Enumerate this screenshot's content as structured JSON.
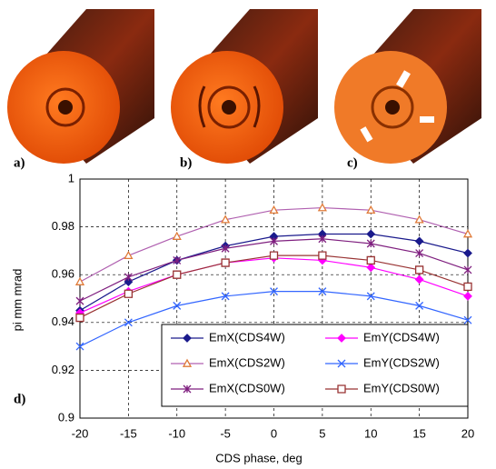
{
  "panel_labels": [
    "a)",
    "b)",
    "c)",
    "d)"
  ],
  "chart_data": {
    "type": "line",
    "x_label": "CDS phase, deg",
    "y_label": "pi mm mrad",
    "x": [
      -20,
      -15,
      -10,
      -5,
      0,
      5,
      10,
      15,
      20
    ],
    "xlim": [
      -20,
      20
    ],
    "xticks": [
      -20,
      -15,
      -10,
      -5,
      0,
      5,
      10,
      15,
      20
    ],
    "ylim": [
      0.9,
      1
    ],
    "yticks": [
      0.9,
      0.92,
      0.94,
      0.96,
      0.98,
      1
    ],
    "grid": true,
    "series": [
      {
        "name": "EmX(CDS4W)",
        "color": "#1a1a8c",
        "marker": "diamond",
        "values": [
          0.945,
          0.957,
          0.966,
          0.972,
          0.976,
          0.977,
          0.977,
          0.974,
          0.969
        ]
      },
      {
        "name": "EmY(CDS4W)",
        "color": "#ff00ff",
        "marker": "diamond",
        "values": [
          0.944,
          0.953,
          0.96,
          0.965,
          0.967,
          0.966,
          0.963,
          0.958,
          0.951
        ]
      },
      {
        "name": "EmX(CDS2W)",
        "color": "#e07b39",
        "line_color": "#b060b0",
        "marker": "triangle",
        "values": [
          0.957,
          0.968,
          0.976,
          0.983,
          0.987,
          0.988,
          0.987,
          0.983,
          0.977
        ]
      },
      {
        "name": "EmY(CDS2W)",
        "color": "#3366ff",
        "marker": "x",
        "values": [
          0.93,
          0.94,
          0.947,
          0.951,
          0.953,
          0.953,
          0.951,
          0.947,
          0.941
        ]
      },
      {
        "name": "EmX(CDS0W)",
        "color": "#7f1f7f",
        "marker": "star",
        "values": [
          0.949,
          0.959,
          0.966,
          0.971,
          0.974,
          0.975,
          0.973,
          0.969,
          0.962
        ]
      },
      {
        "name": "EmY(CDS0W)",
        "color": "#993333",
        "marker": "square",
        "values": [
          0.942,
          0.952,
          0.96,
          0.965,
          0.968,
          0.968,
          0.966,
          0.962,
          0.955
        ]
      }
    ]
  }
}
